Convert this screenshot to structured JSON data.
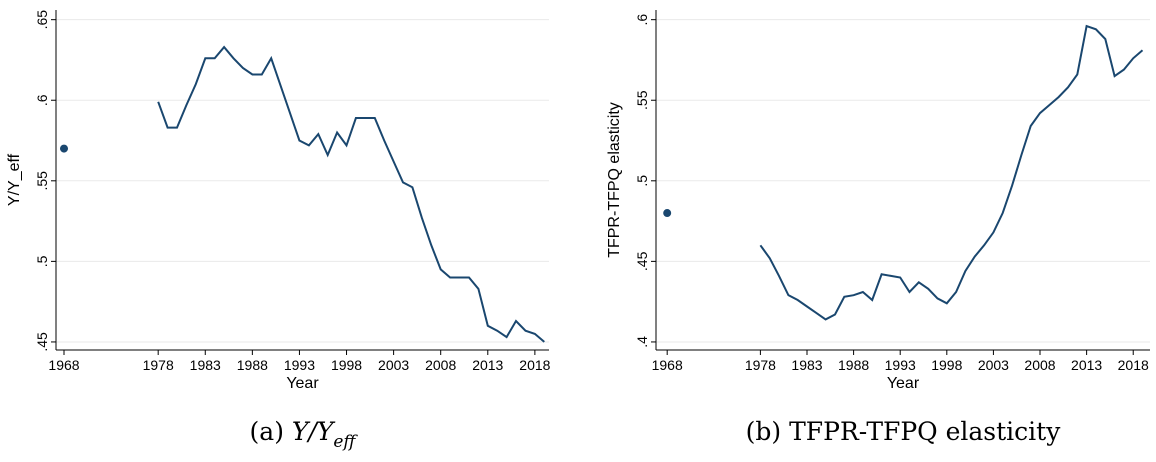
{
  "chart_data": [
    {
      "type": "line",
      "ylabel": "Y/Y_eff",
      "xlabel": "Year",
      "caption_label": "(a)",
      "caption": "Y/Y",
      "caption_sub": "eff",
      "xlim": [
        1967.15,
        2019.5
      ],
      "ylim": [
        0.445,
        0.656
      ],
      "xticks": [
        1968,
        1978,
        1983,
        1988,
        1993,
        1998,
        2003,
        2008,
        2013,
        2018
      ],
      "yticks": [
        {
          "value": 0.45,
          "label": ".45"
        },
        {
          "value": 0.5,
          "label": ".5"
        },
        {
          "value": 0.55,
          "label": ".55"
        },
        {
          "value": 0.6,
          "label": ".6"
        },
        {
          "value": 0.65,
          "label": ".65"
        }
      ],
      "grid": true,
      "series": [
        {
          "marker": "dot",
          "color": "#1a476f",
          "x": [
            1968
          ],
          "values": [
            0.57
          ]
        },
        {
          "marker": "line",
          "color": "#1a476f",
          "x": [
            1978,
            1979,
            1980,
            1981,
            1982,
            1983,
            1984,
            1985,
            1986,
            1987,
            1988,
            1989,
            1990,
            1991,
            1992,
            1993,
            1994,
            1995,
            1996,
            1997,
            1998,
            1999,
            2000,
            2001,
            2002,
            2003,
            2004,
            2005,
            2006,
            2007,
            2008,
            2009,
            2010,
            2011,
            2012,
            2013,
            2014,
            2015,
            2016,
            2017,
            2018,
            2019
          ],
          "values": [
            0.599,
            0.583,
            0.583,
            0.597,
            0.61,
            0.626,
            0.626,
            0.633,
            0.626,
            0.62,
            0.616,
            0.616,
            0.626,
            0.609,
            0.592,
            0.575,
            0.572,
            0.579,
            0.566,
            0.58,
            0.572,
            0.589,
            0.589,
            0.589,
            0.575,
            0.562,
            0.549,
            0.546,
            0.527,
            0.51,
            0.495,
            0.49,
            0.49,
            0.49,
            0.483,
            0.46,
            0.457,
            0.453,
            0.463,
            0.457,
            0.455,
            0.45
          ]
        }
      ]
    },
    {
      "type": "line",
      "ylabel": "TFPR-TFPQ elasticity",
      "xlabel": "Year",
      "caption_label": "(b)",
      "caption": "TFPR-TFPQ elasticity",
      "xlim": [
        1966.8,
        2019.8
      ],
      "ylim": [
        0.395,
        0.606
      ],
      "xticks": [
        1968,
        1978,
        1983,
        1988,
        1993,
        1998,
        2003,
        2008,
        2013,
        2018
      ],
      "yticks": [
        {
          "value": 0.4,
          "label": ".4"
        },
        {
          "value": 0.45,
          "label": ".45"
        },
        {
          "value": 0.5,
          "label": ".5"
        },
        {
          "value": 0.55,
          "label": ".55"
        },
        {
          "value": 0.6,
          "label": ".6"
        }
      ],
      "grid": true,
      "series": [
        {
          "marker": "dot",
          "color": "#1a476f",
          "x": [
            1968
          ],
          "values": [
            0.48
          ]
        },
        {
          "marker": "line",
          "color": "#1a476f",
          "x": [
            1978,
            1979,
            1980,
            1981,
            1982,
            1983,
            1984,
            1985,
            1986,
            1987,
            1988,
            1989,
            1990,
            1991,
            1992,
            1993,
            1994,
            1995,
            1996,
            1997,
            1998,
            1999,
            2000,
            2001,
            2002,
            2003,
            2004,
            2005,
            2006,
            2007,
            2008,
            2009,
            2010,
            2011,
            2012,
            2013,
            2014,
            2015,
            2016,
            2017,
            2018,
            2019
          ],
          "values": [
            0.46,
            0.452,
            0.441,
            0.429,
            0.426,
            0.422,
            0.418,
            0.414,
            0.417,
            0.428,
            0.429,
            0.431,
            0.426,
            0.442,
            0.441,
            0.44,
            0.431,
            0.437,
            0.433,
            0.427,
            0.424,
            0.431,
            0.444,
            0.453,
            0.46,
            0.468,
            0.48,
            0.497,
            0.516,
            0.534,
            0.542,
            0.547,
            0.552,
            0.558,
            0.566,
            0.596,
            0.594,
            0.588,
            0.565,
            0.569,
            0.576,
            0.581
          ]
        }
      ]
    }
  ]
}
